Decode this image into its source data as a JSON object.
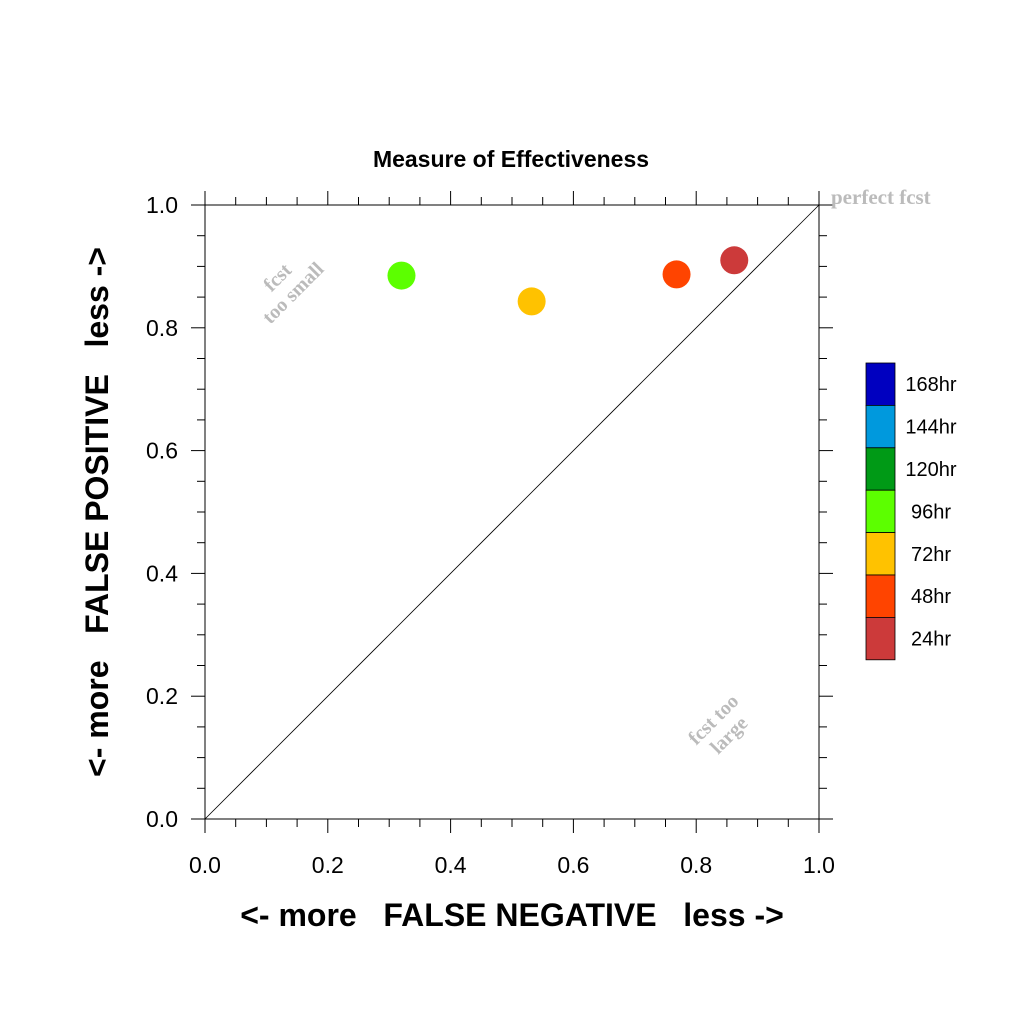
{
  "chart_data": {
    "type": "scatter",
    "title": "Measure of Effectiveness",
    "xlabel": "<- more   FALSE NEGATIVE   less ->",
    "ylabel": "<- more   FALSE POSITIVE   less ->",
    "xlim": [
      0,
      1
    ],
    "ylim": [
      0,
      1
    ],
    "xticks": [
      "0.0",
      "0.2",
      "0.4",
      "0.6",
      "0.8",
      "1.0"
    ],
    "yticks": [
      "0.0",
      "0.2",
      "0.4",
      "0.6",
      "0.8",
      "1.0"
    ],
    "grid": false,
    "reference_line": {
      "from": [
        0,
        0
      ],
      "to": [
        1,
        1
      ],
      "label": "perfect fcst"
    },
    "annotations": [
      {
        "text_lines": [
          "fcst",
          "too small"
        ],
        "x": 0.13,
        "y": 0.87,
        "rotation": -45
      },
      {
        "text_lines": [
          "fcst too",
          "large"
        ],
        "x": 0.84,
        "y": 0.15,
        "rotation": -45
      }
    ],
    "points": [
      {
        "series": "96hr",
        "x": 0.32,
        "y": 0.885
      },
      {
        "series": "72hr",
        "x": 0.532,
        "y": 0.843
      },
      {
        "series": "48hr",
        "x": 0.768,
        "y": 0.887
      },
      {
        "series": "24hr",
        "x": 0.862,
        "y": 0.91
      }
    ],
    "legend": {
      "placement": "right",
      "entries": [
        {
          "label": "168hr",
          "color": "#0000c0"
        },
        {
          "label": "144hr",
          "color": "#0099dd"
        },
        {
          "label": "120hr",
          "color": "#009a16"
        },
        {
          "label": "96hr",
          "color": "#5cff00"
        },
        {
          "label": "72hr",
          "color": "#ffc200"
        },
        {
          "label": "48hr",
          "color": "#ff4400"
        },
        {
          "label": "24hr",
          "color": "#cc3a3a"
        }
      ]
    }
  }
}
